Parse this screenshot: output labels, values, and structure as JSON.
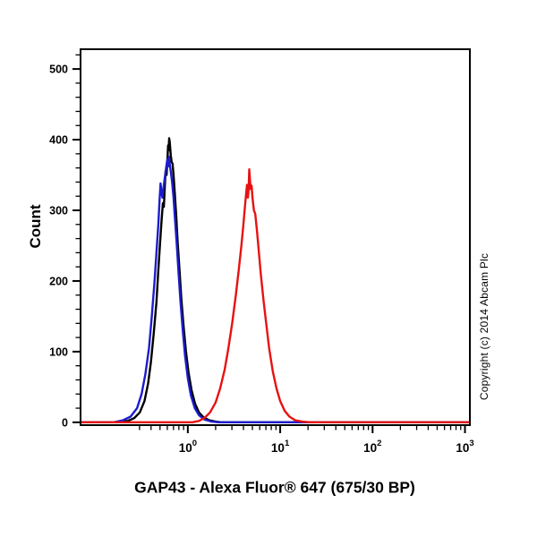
{
  "figure": {
    "title": "GAP43 - Alexa Fluor® 647 (675/30 BP)",
    "y_axis_title": "Count",
    "copyright_notice": "Copyright (c) 2014 Abcam Plc"
  },
  "colors": {
    "background": "#ffffff",
    "axis": "#000000",
    "black_series": "#000000",
    "blue_series": "#1c1ccd",
    "red_series": "#e81111"
  },
  "chart_data": {
    "type": "line",
    "subtype": "flow-cytometry-histogram",
    "title": "GAP43 - Alexa Fluor® 647 (675/30 BP)",
    "xlabel": "GAP43 - Alexa Fluor® 647 (675/30 BP)",
    "ylabel": "Count",
    "x_scale": "log10",
    "xlim": [
      0.069,
      1130
    ],
    "ylim": [
      -4,
      528
    ],
    "grid": false,
    "legend": "none",
    "y_axis": {
      "major_ticks": [
        0,
        100,
        200,
        300,
        400,
        500
      ],
      "minor_step": 20
    },
    "x_axis": {
      "major_ticks": [
        {
          "value": 1,
          "base": "10",
          "exp": "0"
        },
        {
          "value": 10,
          "base": "10",
          "exp": "1"
        },
        {
          "value": 100,
          "base": "10",
          "exp": "2"
        },
        {
          "value": 1000,
          "base": "10",
          "exp": "3"
        }
      ],
      "minor_ticks": [
        0.3,
        0.4,
        0.5,
        0.6,
        0.7,
        0.8,
        0.9,
        2,
        3,
        4,
        5,
        6,
        7,
        8,
        9,
        20,
        30,
        40,
        50,
        60,
        70,
        80,
        90,
        200,
        300,
        400,
        500,
        600,
        700,
        800,
        900
      ]
    },
    "series": [
      {
        "name": "black-curve",
        "color": "#000000",
        "peak": {
          "x": 0.63,
          "count": 402
        },
        "points": [
          [
            0.069,
            0
          ],
          [
            0.178,
            0
          ],
          [
            0.224,
            2
          ],
          [
            0.263,
            6
          ],
          [
            0.302,
            14
          ],
          [
            0.339,
            30
          ],
          [
            0.372,
            55
          ],
          [
            0.398,
            85
          ],
          [
            0.427,
            125
          ],
          [
            0.457,
            170
          ],
          [
            0.479,
            215
          ],
          [
            0.501,
            255
          ],
          [
            0.519,
            285
          ],
          [
            0.537,
            310
          ],
          [
            0.55,
            305
          ],
          [
            0.562,
            330
          ],
          [
            0.575,
            355
          ],
          [
            0.589,
            350
          ],
          [
            0.603,
            375
          ],
          [
            0.612,
            392
          ],
          [
            0.619,
            385
          ],
          [
            0.628,
            402
          ],
          [
            0.638,
            396
          ],
          [
            0.653,
            378
          ],
          [
            0.668,
            368
          ],
          [
            0.684,
            366
          ],
          [
            0.7,
            350
          ],
          [
            0.724,
            322
          ],
          [
            0.75,
            290
          ],
          [
            0.776,
            255
          ],
          [
            0.813,
            215
          ],
          [
            0.851,
            175
          ],
          [
            0.902,
            135
          ],
          [
            0.955,
            100
          ],
          [
            1.02,
            70
          ],
          [
            1.1,
            45
          ],
          [
            1.2,
            26
          ],
          [
            1.32,
            14
          ],
          [
            1.48,
            7
          ],
          [
            1.7,
            3
          ],
          [
            2.0,
            1
          ],
          [
            2.29,
            0
          ],
          [
            1130,
            0
          ]
        ]
      },
      {
        "name": "blue-curve",
        "color": "#1c1ccd",
        "peak": {
          "x": 0.62,
          "count": 376
        },
        "points": [
          [
            0.069,
            0
          ],
          [
            0.158,
            0
          ],
          [
            0.2,
            3
          ],
          [
            0.24,
            8
          ],
          [
            0.282,
            20
          ],
          [
            0.316,
            40
          ],
          [
            0.347,
            68
          ],
          [
            0.38,
            105
          ],
          [
            0.407,
            150
          ],
          [
            0.437,
            200
          ],
          [
            0.457,
            240
          ],
          [
            0.479,
            280
          ],
          [
            0.495,
            315
          ],
          [
            0.507,
            338
          ],
          [
            0.519,
            325
          ],
          [
            0.531,
            318
          ],
          [
            0.543,
            330
          ],
          [
            0.562,
            345
          ],
          [
            0.582,
            360
          ],
          [
            0.6,
            372
          ],
          [
            0.61,
            362
          ],
          [
            0.624,
            376
          ],
          [
            0.638,
            365
          ],
          [
            0.653,
            355
          ],
          [
            0.676,
            340
          ],
          [
            0.7,
            318
          ],
          [
            0.724,
            290
          ],
          [
            0.759,
            252
          ],
          [
            0.794,
            212
          ],
          [
            0.832,
            172
          ],
          [
            0.881,
            130
          ],
          [
            0.933,
            95
          ],
          [
            1.0,
            62
          ],
          [
            1.08,
            38
          ],
          [
            1.19,
            20
          ],
          [
            1.32,
            10
          ],
          [
            1.51,
            4
          ],
          [
            1.82,
            1
          ],
          [
            2.14,
            0
          ],
          [
            1130,
            0
          ]
        ]
      },
      {
        "name": "red-curve",
        "color": "#e81111",
        "peak": {
          "x": 4.6,
          "count": 358
        },
        "points": [
          [
            0.069,
            0
          ],
          [
            1.12,
            0
          ],
          [
            1.32,
            2
          ],
          [
            1.51,
            6
          ],
          [
            1.74,
            14
          ],
          [
            2.0,
            28
          ],
          [
            2.24,
            48
          ],
          [
            2.51,
            75
          ],
          [
            2.75,
            105
          ],
          [
            3.02,
            140
          ],
          [
            3.31,
            180
          ],
          [
            3.55,
            215
          ],
          [
            3.8,
            250
          ],
          [
            3.98,
            278
          ],
          [
            4.12,
            300
          ],
          [
            4.27,
            322
          ],
          [
            4.37,
            336
          ],
          [
            4.47,
            318
          ],
          [
            4.55,
            330
          ],
          [
            4.62,
            358
          ],
          [
            4.7,
            345
          ],
          [
            4.79,
            330
          ],
          [
            4.9,
            335
          ],
          [
            5.01,
            318
          ],
          [
            5.19,
            300
          ],
          [
            5.37,
            295
          ],
          [
            5.62,
            270
          ],
          [
            5.89,
            240
          ],
          [
            6.17,
            210
          ],
          [
            6.61,
            172
          ],
          [
            7.08,
            138
          ],
          [
            7.59,
            105
          ],
          [
            8.32,
            72
          ],
          [
            9.12,
            48
          ],
          [
            10.0,
            30
          ],
          [
            11.2,
            16
          ],
          [
            12.6,
            8
          ],
          [
            14.5,
            3
          ],
          [
            17.4,
            1
          ],
          [
            20.9,
            0
          ],
          [
            1130,
            0
          ]
        ]
      }
    ]
  }
}
